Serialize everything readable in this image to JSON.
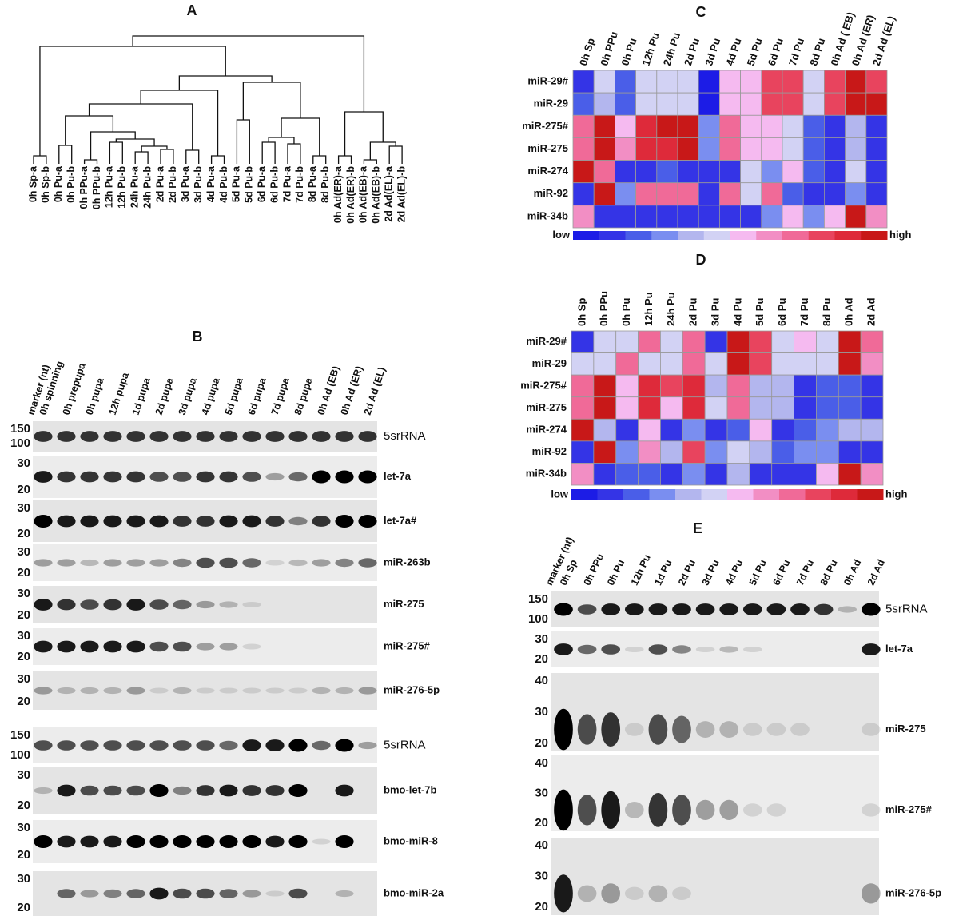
{
  "palette": [
    "#1c1ce6",
    "#3434e6",
    "#4a5ee8",
    "#7a8ef0",
    "#b3b6ee",
    "#d2d2f4",
    "#f5baf0",
    "#f28ec4",
    "#f06a98",
    "#e8445e",
    "#de2a3a",
    "#c81818"
  ],
  "panel_a": {
    "label": "A",
    "leaves": [
      "0h Sp-a",
      "0h Sp-b",
      "0h Pu-a",
      "0h Pu-b",
      "0h PPu-a",
      "0h PPu-b",
      "12h Pu-a",
      "12h Pu-b",
      "24h Pu-a",
      "24h Pu-b",
      "2d Pu-a",
      "2d Pu-b",
      "3d Pu-a",
      "3d Pu-b",
      "4d Pu-a",
      "4d Pu-b",
      "5d Pu-a",
      "5d Pu-b",
      "6d Pu-a",
      "6d Pu-b",
      "7d Pu-a",
      "7d Pu-b",
      "8d Pu-a",
      "8d Pu-b",
      "0h Ad(ER)-a",
      "0h Ad(ER)-b",
      "0h Ad(EB)-a",
      "0h Ad(EB)-b",
      "2d Ad(EL)-a",
      "2d Ad(EL)-b"
    ]
  },
  "panel_b": {
    "label": "B",
    "lanes": [
      "marker (nt)",
      "0h spinning",
      "0h prepupa",
      "0h pupa",
      "12h pupa",
      "1d  pupa",
      "2d pupa",
      "3d pupa",
      "4d pupa",
      "5d pupa",
      "6d pupa",
      "7d pupa",
      "8d pupa",
      "0h Ad (EB)",
      "0h Ad (ER)",
      "2d Ad (EL)"
    ],
    "blots": [
      {
        "label": "5srRNA",
        "markers": [
          150,
          100
        ]
      },
      {
        "label": "let-7a",
        "markers": [
          30,
          20
        ]
      },
      {
        "label": "let-7a#",
        "markers": [
          30,
          20
        ]
      },
      {
        "label": "miR-263b",
        "markers": [
          30,
          20
        ]
      },
      {
        "label": "miR-275",
        "markers": [
          30,
          20
        ]
      },
      {
        "label": "miR-275#",
        "markers": [
          30,
          20
        ]
      },
      {
        "label": "miR-276-5p",
        "markers": [
          30,
          20
        ]
      },
      {
        "label": "5srRNA",
        "markers": [
          150,
          100
        ]
      },
      {
        "label": "bmo-let-7b",
        "markers": [
          30,
          20
        ]
      },
      {
        "label": "bmo-miR-8",
        "markers": [
          30,
          20
        ]
      },
      {
        "label": "bmo-miR-2a",
        "markers": [
          30,
          20
        ]
      }
    ]
  },
  "panel_c": {
    "label": "C",
    "columns": [
      "0h Sp",
      "0h PPu",
      "0h Pu",
      "12h Pu",
      "24h Pu",
      "2d Pu",
      "3d Pu",
      "4d Pu",
      "5d Pu",
      "6d Pu",
      "7d Pu",
      "8d Pu",
      "0h Ad ( EB)",
      "0h Ad (ER)",
      "2d Ad (EL)"
    ],
    "rows": [
      "miR-29#",
      "miR-29",
      "miR-275#",
      "miR-275",
      "miR-274",
      "miR-92",
      "miR-34b"
    ],
    "levels": [
      [
        1,
        5,
        2,
        5,
        5,
        5,
        0,
        6,
        6,
        9,
        9,
        5,
        9,
        11,
        9
      ],
      [
        2,
        4,
        2,
        5,
        5,
        5,
        0,
        6,
        6,
        9,
        9,
        5,
        9,
        11,
        11
      ],
      [
        8,
        11,
        6,
        10,
        11,
        11,
        3,
        8,
        6,
        6,
        5,
        2,
        1,
        4,
        1
      ],
      [
        8,
        11,
        7,
        10,
        10,
        11,
        3,
        8,
        6,
        6,
        5,
        2,
        1,
        4,
        1
      ],
      [
        11,
        8,
        1,
        1,
        2,
        1,
        1,
        1,
        5,
        3,
        6,
        2,
        1,
        5,
        1
      ],
      [
        1,
        11,
        3,
        8,
        8,
        8,
        1,
        8,
        5,
        8,
        2,
        1,
        1,
        3,
        1
      ],
      [
        7,
        1,
        1,
        1,
        1,
        1,
        1,
        1,
        1,
        3,
        6,
        3,
        6,
        11,
        7
      ]
    ],
    "scale_low": "low",
    "scale_high": "high"
  },
  "panel_d": {
    "label": "D",
    "columns": [
      "0h Sp",
      "0h PPu",
      "0h Pu",
      "12h Pu",
      "24h Pu",
      "2d Pu",
      "3d Pu",
      "4d Pu",
      "5d Pu",
      "6d Pu",
      "7d Pu",
      "8d Pu",
      "0h Ad",
      "2d Ad"
    ],
    "rows": [
      "miR-29#",
      "miR-29",
      "miR-275#",
      "miR-275",
      "miR-274",
      "miR-92",
      "miR-34b"
    ],
    "levels": [
      [
        1,
        5,
        5,
        8,
        5,
        8,
        1,
        11,
        9,
        5,
        6,
        5,
        11,
        8
      ],
      [
        5,
        5,
        8,
        5,
        5,
        8,
        5,
        11,
        9,
        5,
        5,
        5,
        11,
        7
      ],
      [
        8,
        11,
        6,
        10,
        9,
        10,
        4,
        8,
        4,
        4,
        1,
        2,
        2,
        1
      ],
      [
        8,
        11,
        6,
        10,
        6,
        10,
        5,
        8,
        4,
        4,
        1,
        2,
        2,
        1
      ],
      [
        11,
        4,
        1,
        6,
        1,
        3,
        1,
        2,
        6,
        1,
        2,
        3,
        4,
        4
      ],
      [
        1,
        11,
        3,
        7,
        4,
        9,
        3,
        5,
        4,
        2,
        3,
        3,
        1,
        1
      ],
      [
        7,
        1,
        2,
        2,
        1,
        3,
        1,
        4,
        1,
        1,
        1,
        6,
        11,
        7
      ]
    ],
    "scale_low": "low",
    "scale_high": "high"
  },
  "panel_e": {
    "label": "E",
    "lanes": [
      "marker (nt)",
      "0h Sp",
      "0h PPu",
      "0h Pu",
      "12h Pu",
      "1d  Pu",
      "2d Pu",
      "3d Pu",
      "4d Pu",
      "5d Pu",
      "6d Pu",
      "7d Pu",
      "8d Pu",
      "0h Ad",
      "2d Ad"
    ],
    "blots": [
      {
        "label": "5srRNA",
        "markers": [
          150,
          100
        ]
      },
      {
        "label": "let-7a",
        "markers": [
          30,
          20
        ]
      },
      {
        "label": "miR-275",
        "markers": [
          40,
          30,
          20
        ]
      },
      {
        "label": "miR-275#",
        "markers": [
          40,
          30,
          20
        ]
      },
      {
        "label": "miR-276-5p",
        "markers": [
          40,
          30,
          20
        ]
      }
    ]
  }
}
